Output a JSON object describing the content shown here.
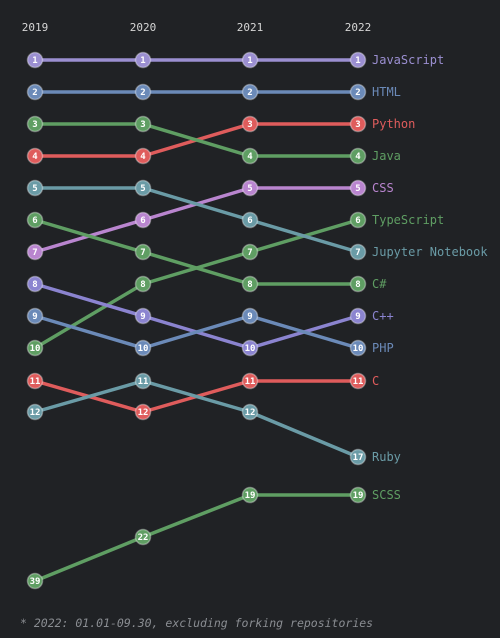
{
  "chart_data": {
    "type": "bump",
    "years": [
      "2019",
      "2020",
      "2021",
      "2022"
    ],
    "series": [
      {
        "name": "JavaScript",
        "color": "#9b8fd1",
        "ranks": [
          1,
          1,
          1,
          1
        ]
      },
      {
        "name": "HTML",
        "color": "#6b8ab8",
        "ranks": [
          2,
          2,
          2,
          2
        ]
      },
      {
        "name": "Python",
        "color": "#df5c5c",
        "ranks": [
          4,
          4,
          3,
          3
        ]
      },
      {
        "name": "Java",
        "color": "#5f9e63",
        "ranks": [
          3,
          3,
          4,
          4
        ]
      },
      {
        "name": "CSS",
        "color": "#b985cf",
        "ranks": [
          7,
          6,
          5,
          5
        ]
      },
      {
        "name": "TypeScript",
        "color": "#5f9e63",
        "ranks": [
          10,
          8,
          7,
          6
        ]
      },
      {
        "name": "Jupyter Notebook",
        "color": "#6a9ba6",
        "ranks": [
          5,
          5,
          6,
          7
        ]
      },
      {
        "name": "C#",
        "color": "#5f9e63",
        "ranks": [
          6,
          7,
          8,
          8
        ]
      },
      {
        "name": "C++",
        "color": "#8b84d0",
        "ranks": [
          8,
          9,
          10,
          9
        ]
      },
      {
        "name": "PHP",
        "color": "#6b8ab8",
        "ranks": [
          9,
          10,
          9,
          10
        ]
      },
      {
        "name": "C",
        "color": "#df5c5c",
        "ranks": [
          11,
          12,
          11,
          11
        ]
      },
      {
        "name": "Ruby",
        "color": "#6a9ba6",
        "ranks": [
          12,
          11,
          12,
          17
        ]
      },
      {
        "name": "SCSS",
        "color": "#5f9e63",
        "ranks": [
          39,
          22,
          19,
          19
        ]
      }
    ]
  },
  "footnote": "* 2022: 01.01-09.30, excluding forking repositories"
}
